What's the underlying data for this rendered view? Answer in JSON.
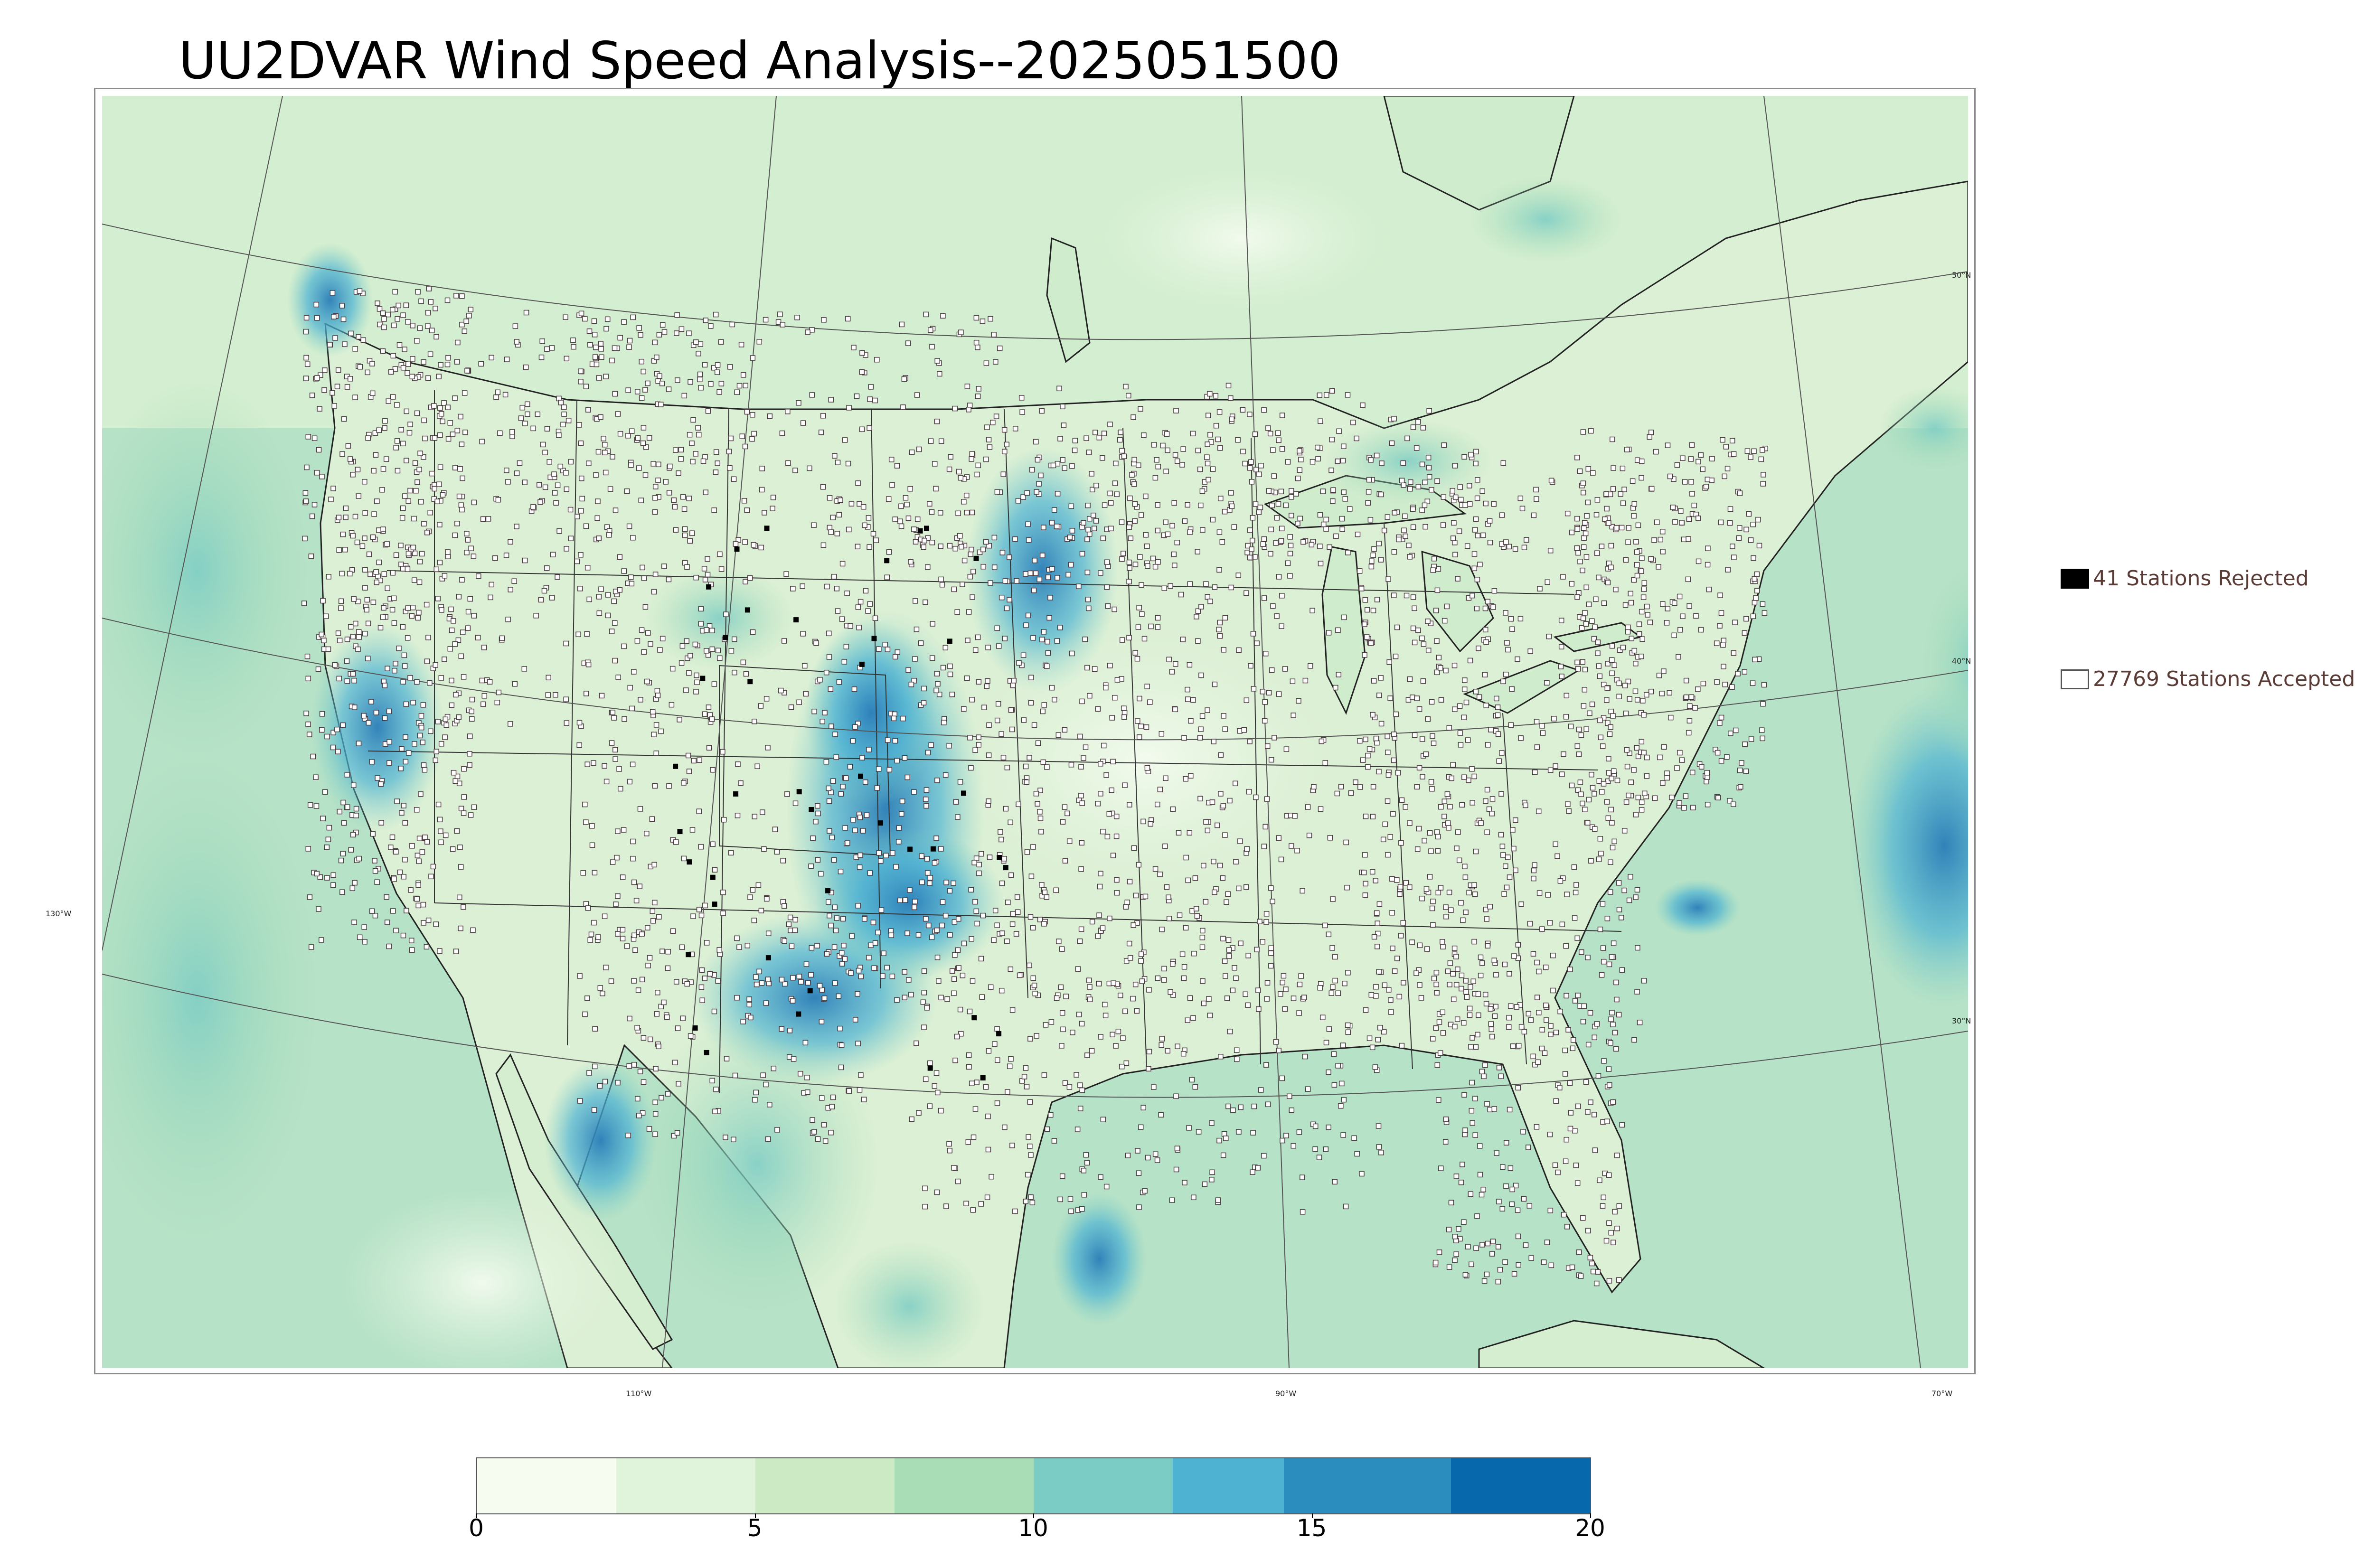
{
  "title": "UU2DVAR Wind Speed Analysis--2025051500",
  "map": {
    "lat_labels": [
      "50°N",
      "40°N",
      "30°N"
    ],
    "lon_labels": [
      "130°W",
      "110°W",
      "90°W",
      "70°W"
    ]
  },
  "legend": {
    "rejected": {
      "count": 41,
      "label": "41 Stations Rejected",
      "color": "#000000"
    },
    "accepted": {
      "count": 27769,
      "label": "27769 Stations Accepted",
      "color": "#ffffff"
    }
  },
  "colorbar": {
    "ticks": [
      "0",
      "5",
      "10",
      "15",
      "20"
    ],
    "min": 0,
    "max": 20,
    "colors": [
      "#f7fcf0",
      "#e0f3db",
      "#ccebc5",
      "#a8ddb5",
      "#7bccc4",
      "#4eb3d3",
      "#2b8cbe",
      "#0868ac",
      "#1d5a87"
    ],
    "bounds": [
      0,
      2.5,
      5,
      7.5,
      10,
      12.5,
      14.5,
      17.5,
      20
    ]
  },
  "colors": {
    "land_fill": "#dff1d6",
    "ocean_fill": "#a9dcc0",
    "high_wind": "#3a92c8",
    "station_outline": "#4a3a40"
  }
}
